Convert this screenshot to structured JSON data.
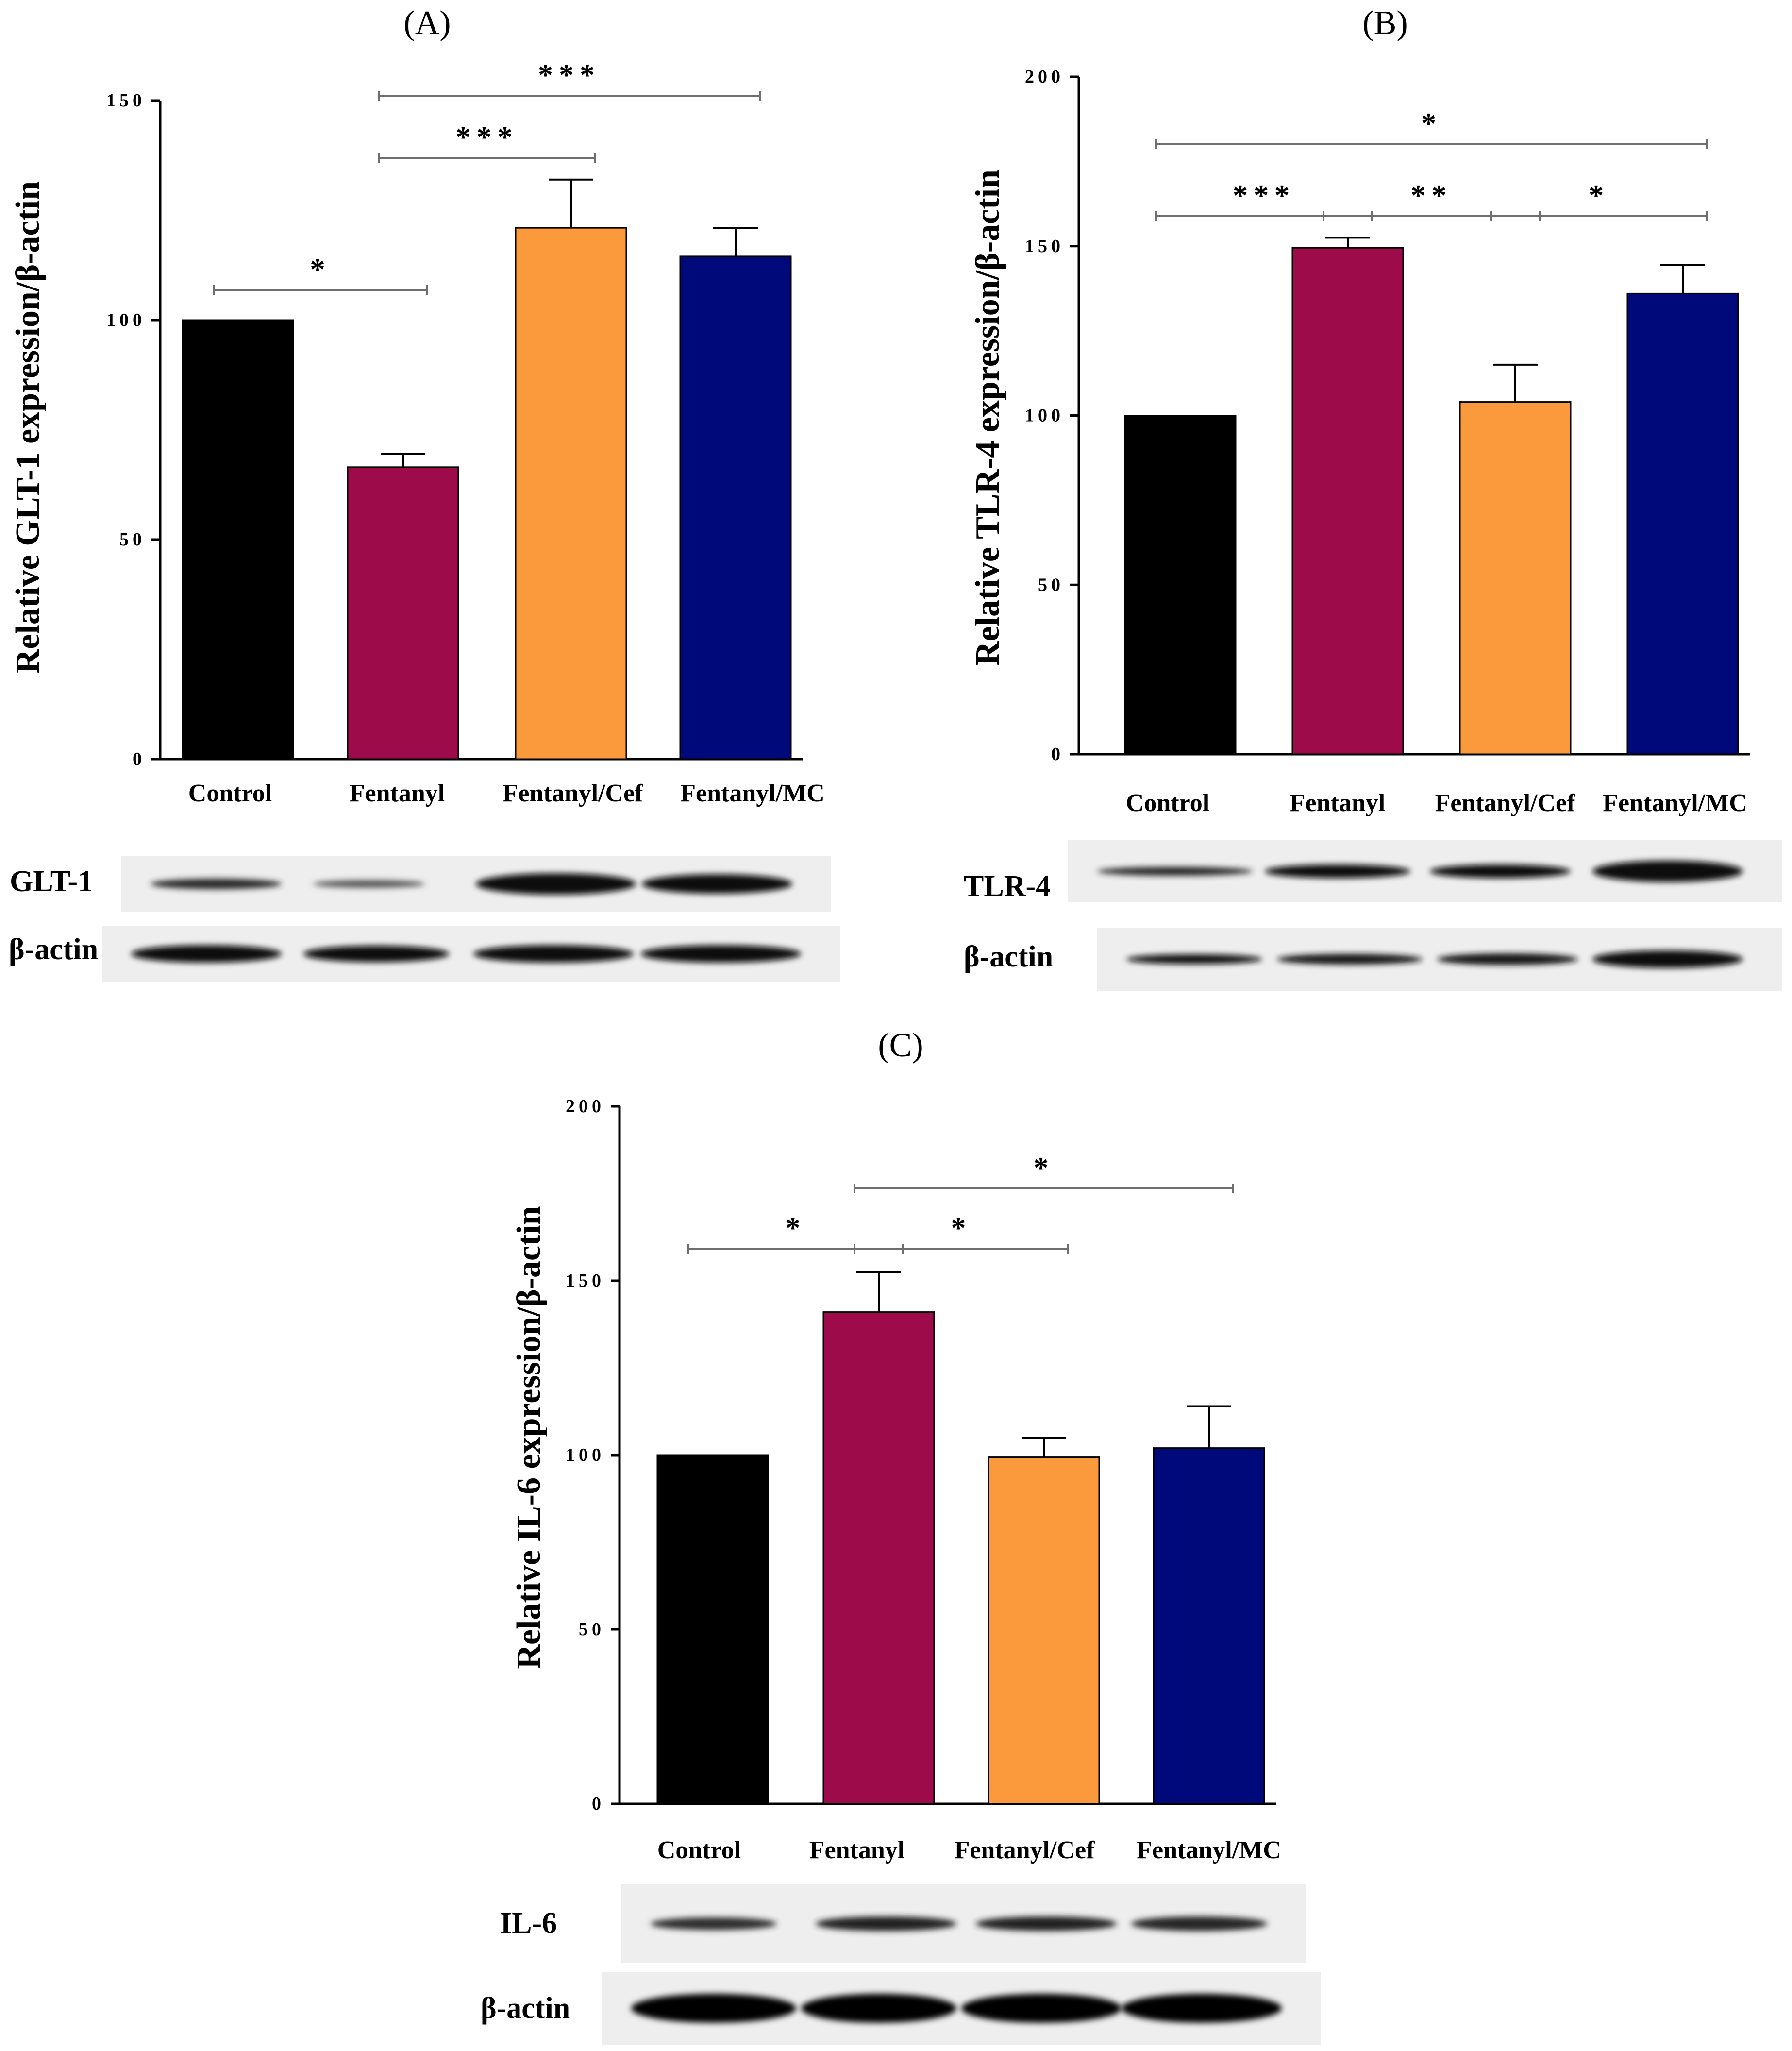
{
  "colors": {
    "control": "#000000",
    "fentanyl": "#9E0B4B",
    "fentanyl_cef": "#FB9A3C",
    "fentanyl_mc": "#00097A",
    "axis": "#000000",
    "bracket": "#6E6E6E"
  },
  "chart_data": [
    {
      "id": "A",
      "type": "bar",
      "panel_label": "(A)",
      "title": "",
      "xlabel": "",
      "ylabel": "Relative GLT-1 expression/β-actin",
      "ylim": [
        0,
        150
      ],
      "yticks": [
        "0",
        "50",
        "100",
        "150"
      ],
      "categories": [
        "Control",
        "Fentanyl",
        "Fentanyl/Cef",
        "Fentanyl/MC"
      ],
      "values": [
        100,
        66.5,
        121,
        114.5
      ],
      "errors": [
        0,
        3,
        11,
        6.5
      ],
      "significance": [
        {
          "from": 0,
          "to": 1,
          "label": "*"
        },
        {
          "from": 1,
          "to": 2,
          "label": "***"
        },
        {
          "from": 1,
          "to": 3,
          "label": "***"
        }
      ],
      "blots": [
        "GLT-1",
        "β-actin"
      ]
    },
    {
      "id": "B",
      "type": "bar",
      "panel_label": "(B)",
      "title": "",
      "xlabel": "",
      "ylabel": "Relative TLR-4 expression/β-actin",
      "ylim": [
        0,
        200
      ],
      "yticks": [
        "0",
        "50",
        "100",
        "150",
        "200"
      ],
      "categories": [
        "Control",
        "Fentanyl",
        "Fentanyl/Cef",
        "Fentanyl/MC"
      ],
      "values": [
        100,
        149.5,
        104,
        136
      ],
      "errors": [
        0,
        3,
        11,
        8.5
      ],
      "significance": [
        {
          "from": 0,
          "to": 3,
          "label": "*"
        },
        {
          "from": 0,
          "to": 1,
          "label": "***"
        },
        {
          "from": 1,
          "to": 2,
          "label": "**"
        },
        {
          "from": 2,
          "to": 3,
          "label": "*"
        }
      ],
      "blots": [
        "TLR-4",
        "β-actin"
      ]
    },
    {
      "id": "C",
      "type": "bar",
      "panel_label": "(C)",
      "title": "",
      "xlabel": "",
      "ylabel": "Relative IL-6 expression/β-actin",
      "ylim": [
        0,
        200
      ],
      "yticks": [
        "0",
        "50",
        "100",
        "150",
        "200"
      ],
      "categories": [
        "Control",
        "Fentanyl",
        "Fentanyl/Cef",
        "Fentanyl/MC"
      ],
      "values": [
        100,
        141,
        99.5,
        102
      ],
      "errors": [
        0,
        11.5,
        5.5,
        12
      ],
      "significance": [
        {
          "from": 0,
          "to": 1,
          "label": "*"
        },
        {
          "from": 1,
          "to": 2,
          "label": "*"
        },
        {
          "from": 1,
          "to": 3,
          "label": "*"
        }
      ],
      "blots": [
        "IL-6",
        "β-actin"
      ]
    }
  ]
}
